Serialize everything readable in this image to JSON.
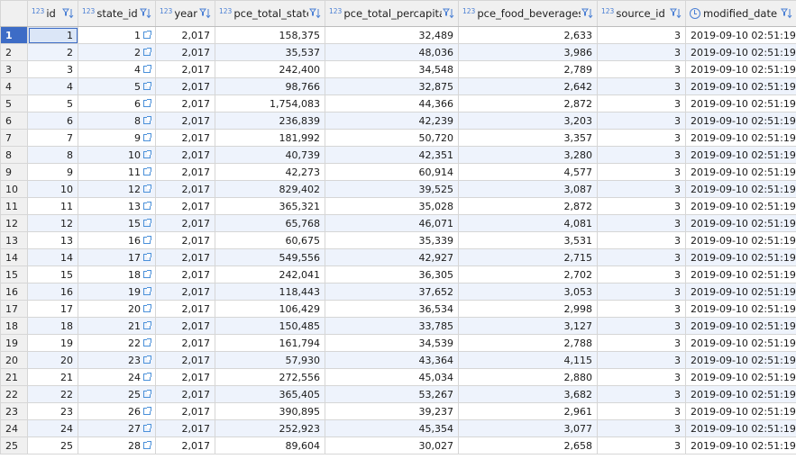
{
  "columns": [
    {
      "name": "id",
      "type": "123"
    },
    {
      "name": "state_id",
      "type": "123"
    },
    {
      "name": "year",
      "type": "123"
    },
    {
      "name": "pce_total_state",
      "type": "123"
    },
    {
      "name": "pce_total_percapita",
      "type": "123"
    },
    {
      "name": "pce_food_beverages",
      "type": "123"
    },
    {
      "name": "source_id",
      "type": "123"
    },
    {
      "name": "modified_date",
      "type": "datetime"
    }
  ],
  "rows": [
    [
      "1",
      "1",
      "1",
      "2,017",
      "158,375",
      "32,489",
      "2,633",
      "3",
      "2019-09-10 02:51:19"
    ],
    [
      "2",
      "2",
      "2",
      "2,017",
      "35,537",
      "48,036",
      "3,986",
      "3",
      "2019-09-10 02:51:19"
    ],
    [
      "3",
      "3",
      "4",
      "2,017",
      "242,400",
      "34,548",
      "2,789",
      "3",
      "2019-09-10 02:51:19"
    ],
    [
      "4",
      "4",
      "5",
      "2,017",
      "98,766",
      "32,875",
      "2,642",
      "3",
      "2019-09-10 02:51:19"
    ],
    [
      "5",
      "5",
      "6",
      "2,017",
      "1,754,083",
      "44,366",
      "2,872",
      "3",
      "2019-09-10 02:51:19"
    ],
    [
      "6",
      "6",
      "8",
      "2,017",
      "236,839",
      "42,239",
      "3,203",
      "3",
      "2019-09-10 02:51:19"
    ],
    [
      "7",
      "7",
      "9",
      "2,017",
      "181,992",
      "50,720",
      "3,357",
      "3",
      "2019-09-10 02:51:19"
    ],
    [
      "8",
      "8",
      "10",
      "2,017",
      "40,739",
      "42,351",
      "3,280",
      "3",
      "2019-09-10 02:51:19"
    ],
    [
      "9",
      "9",
      "11",
      "2,017",
      "42,273",
      "60,914",
      "4,577",
      "3",
      "2019-09-10 02:51:19"
    ],
    [
      "10",
      "10",
      "12",
      "2,017",
      "829,402",
      "39,525",
      "3,087",
      "3",
      "2019-09-10 02:51:19"
    ],
    [
      "11",
      "11",
      "13",
      "2,017",
      "365,321",
      "35,028",
      "2,872",
      "3",
      "2019-09-10 02:51:19"
    ],
    [
      "12",
      "12",
      "15",
      "2,017",
      "65,768",
      "46,071",
      "4,081",
      "3",
      "2019-09-10 02:51:19"
    ],
    [
      "13",
      "13",
      "16",
      "2,017",
      "60,675",
      "35,339",
      "3,531",
      "3",
      "2019-09-10 02:51:19"
    ],
    [
      "14",
      "14",
      "17",
      "2,017",
      "549,556",
      "42,927",
      "2,715",
      "3",
      "2019-09-10 02:51:19"
    ],
    [
      "15",
      "15",
      "18",
      "2,017",
      "242,041",
      "36,305",
      "2,702",
      "3",
      "2019-09-10 02:51:19"
    ],
    [
      "16",
      "16",
      "19",
      "2,017",
      "118,443",
      "37,652",
      "3,053",
      "3",
      "2019-09-10 02:51:19"
    ],
    [
      "17",
      "17",
      "20",
      "2,017",
      "106,429",
      "36,534",
      "2,998",
      "3",
      "2019-09-10 02:51:19"
    ],
    [
      "18",
      "18",
      "21",
      "2,017",
      "150,485",
      "33,785",
      "3,127",
      "3",
      "2019-09-10 02:51:19"
    ],
    [
      "19",
      "19",
      "22",
      "2,017",
      "161,794",
      "34,539",
      "2,788",
      "3",
      "2019-09-10 02:51:19"
    ],
    [
      "20",
      "20",
      "23",
      "2,017",
      "57,930",
      "43,364",
      "4,115",
      "3",
      "2019-09-10 02:51:19"
    ],
    [
      "21",
      "21",
      "24",
      "2,017",
      "272,556",
      "45,034",
      "2,880",
      "3",
      "2019-09-10 02:51:19"
    ],
    [
      "22",
      "22",
      "25",
      "2,017",
      "365,405",
      "53,267",
      "3,682",
      "3",
      "2019-09-10 02:51:19"
    ],
    [
      "23",
      "23",
      "26",
      "2,017",
      "390,895",
      "39,237",
      "2,961",
      "3",
      "2019-09-10 02:51:19"
    ],
    [
      "24",
      "24",
      "27",
      "2,017",
      "252,923",
      "45,354",
      "3,077",
      "3",
      "2019-09-10 02:51:19"
    ],
    [
      "25",
      "25",
      "28",
      "2,017",
      "89,604",
      "30,027",
      "2,658",
      "3",
      "2019-09-10 02:51:19"
    ]
  ],
  "selected_row": 1,
  "colors": {
    "selected": "#3d6cc6",
    "alt_row": "#eef3fc",
    "header_bg": "#f0f0f0",
    "type_icon": "#4a7fd4"
  }
}
